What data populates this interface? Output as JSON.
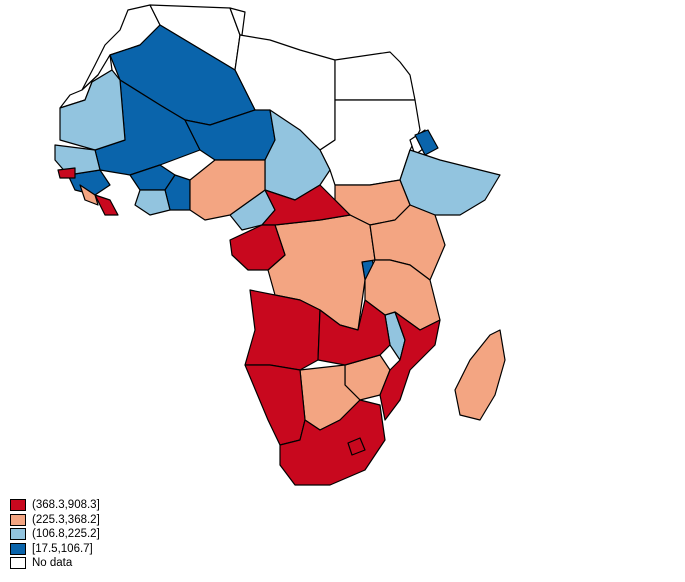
{
  "colors": {
    "class1": "#c8081e",
    "class2": "#f3a582",
    "class3": "#92c4df",
    "class4": "#0a64ab",
    "nodata": "#ffffff"
  },
  "legend": [
    {
      "label": "(368.3,908.3]",
      "color": "#c8081e"
    },
    {
      "label": "(225.3,368.2]",
      "color": "#f3a582"
    },
    {
      "label": "(106.8,225.2]",
      "color": "#92c4df"
    },
    {
      "label": "[17.5,106.7]",
      "color": "#0a64ab"
    },
    {
      "label": "No data",
      "color": "#ffffff"
    }
  ]
}
